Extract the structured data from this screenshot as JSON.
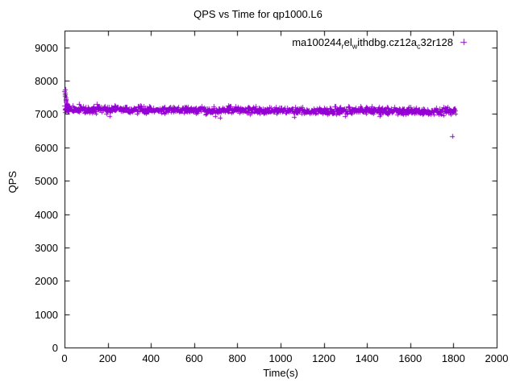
{
  "chart_data": {
    "type": "scatter",
    "title": "QPS vs Time for qp1000.L6",
    "xlabel": "Time(s)",
    "ylabel": "QPS",
    "xlim": [
      0,
      2000
    ],
    "ylim": [
      0,
      9500
    ],
    "xticks": [
      0,
      200,
      400,
      600,
      800,
      1000,
      1200,
      1400,
      1600,
      1800,
      2000
    ],
    "yticks": [
      0,
      1000,
      2000,
      3000,
      4000,
      5000,
      6000,
      7000,
      8000,
      9000
    ],
    "grid": false,
    "marker": "plus",
    "marker_color": "#9400D3",
    "legend": {
      "position": "top-right-inside",
      "label_plain": "ma100244_rel_withdbg.cz12a_c32r128",
      "label_segments": [
        {
          "text": "ma100244"
        },
        {
          "text": "r",
          "sub": true
        },
        {
          "text": "el"
        },
        {
          "text": "w",
          "sub": true
        },
        {
          "text": "ithdbg.cz12a"
        },
        {
          "text": "c",
          "sub": true
        },
        {
          "text": "32r128"
        }
      ]
    },
    "series": [
      {
        "name": "ma100244_rel_withdbg.cz12a_c32r128",
        "summary": "Steady QPS band around 7100 from t=0 to t=1810s, initial spike to ~7700, one low outlier ~6330 near t=1800",
        "band": {
          "x_start": 4,
          "x_end": 1810,
          "x_step": 2,
          "mean_start": 7140,
          "mean_end": 7080,
          "spread": 150,
          "outlier_rate": 0.04,
          "outlier_extra": 180,
          "seed": 20240
        },
        "explicit_points": [
          [
            1,
            7250
          ],
          [
            1,
            7680
          ],
          [
            2,
            7730
          ],
          [
            2,
            7050
          ],
          [
            3,
            7650
          ],
          [
            3,
            7150
          ],
          [
            4,
            7600
          ],
          [
            5,
            7550
          ],
          [
            6,
            7500
          ],
          [
            7,
            7450
          ],
          [
            8,
            7410
          ],
          [
            9,
            7370
          ],
          [
            10,
            7330
          ],
          [
            11,
            7300
          ],
          [
            12,
            7270
          ],
          [
            14,
            7230
          ],
          [
            16,
            7200
          ],
          [
            18,
            7170
          ],
          [
            20,
            7150
          ],
          [
            25,
            7120
          ],
          [
            1460,
            6940
          ],
          [
            1796,
            6330
          ]
        ]
      }
    ]
  }
}
